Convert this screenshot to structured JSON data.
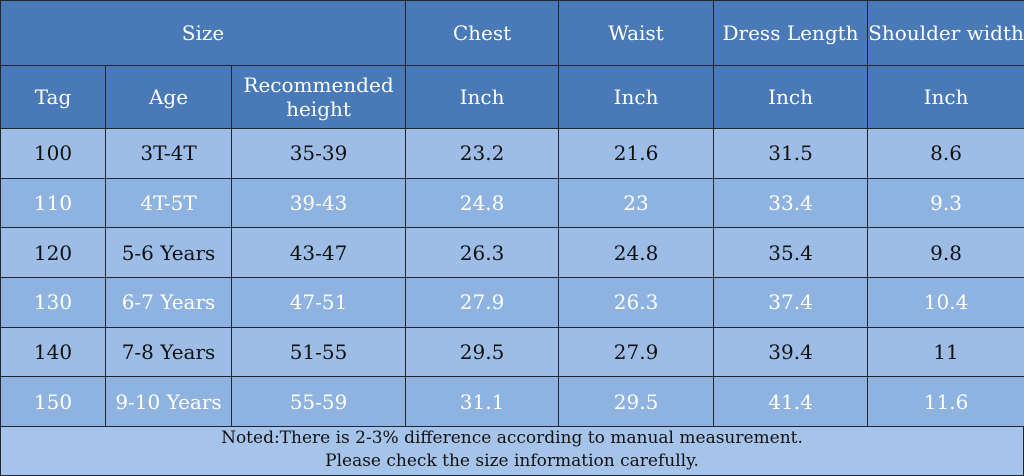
{
  "header": {
    "size_label": "Size",
    "chest_label": "Chest",
    "waist_label": "Waist",
    "dress_length_label": "Dress Length",
    "shoulder_width_label": "Shoulder width",
    "tag_label": "Tag",
    "age_label": "Age",
    "recommended_height_label": "Recommended height",
    "unit_chest": "Inch",
    "unit_waist": "Inch",
    "unit_dress_length": "Inch",
    "unit_shoulder_width": "Inch"
  },
  "rows": [
    {
      "tag": "100",
      "age": "3T-4T",
      "height": "35-39",
      "chest": "23.2",
      "waist": "21.6",
      "dress_length": "31.5",
      "shoulder_width": "8.6"
    },
    {
      "tag": "110",
      "age": "4T-5T",
      "height": "39-43",
      "chest": "24.8",
      "waist": "23",
      "dress_length": "33.4",
      "shoulder_width": "9.3"
    },
    {
      "tag": "120",
      "age": "5-6 Years",
      "height": "43-47",
      "chest": "26.3",
      "waist": "24.8",
      "dress_length": "35.4",
      "shoulder_width": "9.8"
    },
    {
      "tag": "130",
      "age": "6-7 Years",
      "height": "47-51",
      "chest": "27.9",
      "waist": "26.3",
      "dress_length": "37.4",
      "shoulder_width": "10.4"
    },
    {
      "tag": "140",
      "age": "7-8 Years",
      "height": "51-55",
      "chest": "29.5",
      "waist": "27.9",
      "dress_length": "39.4",
      "shoulder_width": "11"
    },
    {
      "tag": "150",
      "age": "9-10 Years",
      "height": "55-59",
      "chest": "31.1",
      "waist": "29.5",
      "dress_length": "41.4",
      "shoulder_width": "11.6"
    }
  ],
  "note": {
    "line1": "Noted:There is 2-3% difference according to manual measurement.",
    "line2": "Please check the size information carefully."
  },
  "colors": {
    "header_bg": "#4a79b8",
    "row_light": "#9ebde6",
    "row_medium": "#8fb3e1",
    "border": "#1f2733"
  }
}
